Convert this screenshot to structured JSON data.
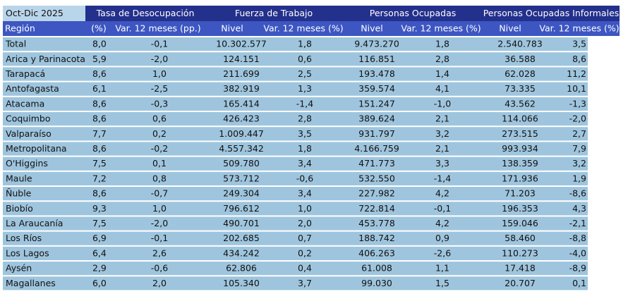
{
  "header": {
    "period": "Oct-Dic 2025",
    "groups": [
      "Tasa de Desocupación",
      "Fuerza de Trabajo",
      "Personas Ocupadas",
      "Personas Ocupadas Informales"
    ],
    "columns": [
      "Región",
      "(%)",
      "Var. 12 meses (pp.)",
      "Nivel",
      "Var. 12 meses (%)",
      "Nivel",
      "Var. 12 meses (%)",
      "Nivel",
      "Var. 12 meses (%)"
    ]
  },
  "table": {
    "rows": [
      [
        "Total",
        "8,0",
        "-0,1",
        "10.302.577",
        "1,8",
        "9.473.270",
        "1,8",
        "2.540.783",
        "3,5"
      ],
      [
        "Arica y Parinacota",
        "5,9",
        "-2,0",
        "124.151",
        "0,6",
        "116.851",
        "2,8",
        "36.588",
        "8,6"
      ],
      [
        "Tarapacá",
        "8,6",
        "1,0",
        "211.699",
        "2,5",
        "193.478",
        "1,4",
        "62.028",
        "11,2"
      ],
      [
        "Antofagasta",
        "6,1",
        "-2,5",
        "382.919",
        "1,3",
        "359.574",
        "4,1",
        "73.335",
        "10,1"
      ],
      [
        "Atacama",
        "8,6",
        "-0,3",
        "165.414",
        "-1,4",
        "151.247",
        "-1,0",
        "43.562",
        "-1,3"
      ],
      [
        "Coquimbo",
        "8,6",
        "0,6",
        "426.423",
        "2,8",
        "389.624",
        "2,1",
        "114.066",
        "-2,0"
      ],
      [
        "Valparaíso",
        "7,7",
        "0,2",
        "1.009.447",
        "3,5",
        "931.797",
        "3,2",
        "273.515",
        "2,7"
      ],
      [
        "Metropolitana",
        "8,6",
        "-0,2",
        "4.557.342",
        "1,8",
        "4.166.759",
        "2,1",
        "993.934",
        "7,9"
      ],
      [
        "O'Higgins",
        "7,5",
        "0,1",
        "509.780",
        "3,4",
        "471.773",
        "3,3",
        "138.359",
        "3,2"
      ],
      [
        "Maule",
        "7,2",
        "0,8",
        "573.712",
        "-0,6",
        "532.550",
        "-1,4",
        "171.936",
        "1,9"
      ],
      [
        "Ñuble",
        "8,6",
        "-0,7",
        "249.304",
        "3,4",
        "227.982",
        "4,2",
        "71.203",
        "-8,6"
      ],
      [
        "Biobío",
        "9,3",
        "1,0",
        "796.612",
        "1,0",
        "722.814",
        "-0,1",
        "196.353",
        "4,3"
      ],
      [
        "La Araucanía",
        "7,5",
        "-2,0",
        "490.701",
        "2,0",
        "453.778",
        "4,2",
        "159.046",
        "-2,1"
      ],
      [
        "Los Ríos",
        "6,9",
        "-0,1",
        "202.685",
        "0,7",
        "188.742",
        "0,9",
        "58.460",
        "-8,8"
      ],
      [
        "Los Lagos",
        "6,4",
        "2,6",
        "434.242",
        "0,2",
        "406.263",
        "-2,6",
        "110.273",
        "-4,0"
      ],
      [
        "Aysén",
        "2,9",
        "-0,6",
        "62.806",
        "0,4",
        "61.008",
        "1,1",
        "17.418",
        "-8,9"
      ],
      [
        "Magallanes",
        "6,0",
        "2,0",
        "105.340",
        "3,7",
        "99.030",
        "1,5",
        "20.707",
        "0,1"
      ]
    ]
  }
}
